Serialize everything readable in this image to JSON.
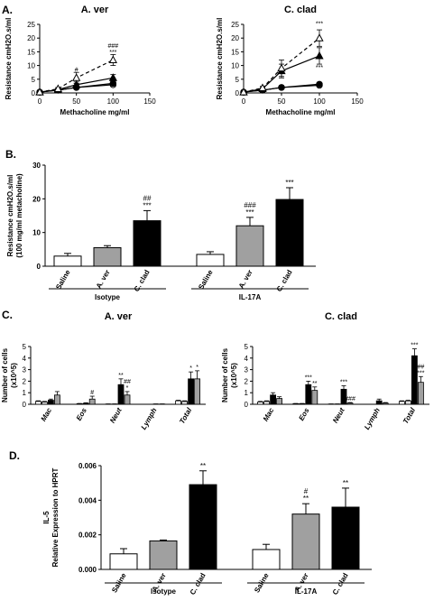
{
  "panels": {
    "A": "A.",
    "B": "B.",
    "C": "C.",
    "D": "D."
  },
  "chart_data": [
    {
      "id": "A1",
      "type": "line",
      "title": "A. ver",
      "xlabel": "Methacholine mg/ml",
      "ylabel": "Resistance cmH2O.s/ml",
      "xlim": [
        0,
        150
      ],
      "ylim": [
        0,
        25
      ],
      "xticks": [
        0,
        50,
        100,
        150
      ],
      "yticks": [
        0,
        5,
        10,
        15,
        20,
        25
      ],
      "x": [
        0,
        25,
        50,
        100
      ],
      "series": [
        {
          "values": [
            0.3,
            1.0,
            2.0,
            3.0
          ],
          "err": [
            0.2,
            0.3,
            0.5,
            0.6
          ],
          "marker": "open-circle",
          "dash": false
        },
        {
          "values": [
            0.3,
            1.0,
            2.0,
            3.5
          ],
          "err": [
            0.2,
            0.3,
            0.6,
            0.6
          ],
          "marker": "filled-circle",
          "dash": false
        },
        {
          "values": [
            0.3,
            1.2,
            3.0,
            5.5
          ],
          "err": [
            0.2,
            0.4,
            1.0,
            1.2
          ],
          "marker": "filled-triangle",
          "dash": false
        },
        {
          "values": [
            0.3,
            1.5,
            5.5,
            12.0
          ],
          "err": [
            0.2,
            0.5,
            2.0,
            2.0
          ],
          "marker": "open-triangle",
          "dash": true
        }
      ],
      "annotations": [
        {
          "x": 50,
          "y": 7.8,
          "text": "#"
        },
        {
          "x": 100,
          "y": 16.5,
          "text": "###"
        },
        {
          "x": 100,
          "y": 14.2,
          "text": "***"
        }
      ]
    },
    {
      "id": "A2",
      "type": "line",
      "title": "C. clad",
      "xlabel": "Methacholine mg/ml",
      "ylabel": "Resistance cmH2O.s/ml",
      "xlim": [
        0,
        150
      ],
      "ylim": [
        0,
        25
      ],
      "xticks": [
        0,
        50,
        100,
        150
      ],
      "yticks": [
        0,
        5,
        10,
        15,
        20,
        25
      ],
      "x": [
        0,
        25,
        50,
        100
      ],
      "series": [
        {
          "values": [
            0.3,
            1.0,
            2.0,
            2.8
          ],
          "err": [
            0.2,
            0.3,
            0.5,
            0.5
          ],
          "marker": "open-circle",
          "dash": false
        },
        {
          "values": [
            0.3,
            1.0,
            2.0,
            3.2
          ],
          "err": [
            0.2,
            0.3,
            0.5,
            0.6
          ],
          "marker": "filled-circle",
          "dash": false
        },
        {
          "values": [
            0.3,
            1.5,
            8.0,
            13.5
          ],
          "err": [
            0.2,
            0.5,
            2.5,
            3.0
          ],
          "marker": "filled-triangle",
          "dash": false
        },
        {
          "values": [
            0.3,
            1.8,
            9.0,
            20.0
          ],
          "err": [
            0.2,
            0.6,
            3.0,
            3.0
          ],
          "marker": "open-triangle",
          "dash": true
        }
      ],
      "annotations": [
        {
          "x": 100,
          "y": 24.5,
          "text": "***"
        },
        {
          "x": 100,
          "y": 8.5,
          "text": "***"
        }
      ]
    },
    {
      "id": "B",
      "type": "bar",
      "ylabel": "Resistance cmH2O.s/ml",
      "ylabel2": "(100 mg/ml metacholine)",
      "ylim": [
        0,
        30
      ],
      "yticks": [
        0,
        10,
        20,
        30
      ],
      "categories": [
        "Saline",
        "A. ver",
        "C. clad",
        "Saline",
        "A. ver",
        "C. clad"
      ],
      "values": [
        3.0,
        5.5,
        13.5,
        3.5,
        12.0,
        19.8
      ],
      "err": [
        0.8,
        0.6,
        3.0,
        0.8,
        2.5,
        3.5
      ],
      "fills": [
        "#ffffff",
        "#a0a0a0",
        "#000000",
        "#ffffff",
        "#a0a0a0",
        "#000000"
      ],
      "annotations": [
        {
          "bar": 2,
          "text": "##",
          "line": 2
        },
        {
          "bar": 2,
          "text": "***",
          "line": 1
        },
        {
          "bar": 4,
          "text": "###",
          "line": 2
        },
        {
          "bar": 4,
          "text": "***",
          "line": 1
        },
        {
          "bar": 5,
          "text": "***",
          "line": 1
        }
      ],
      "groups": [
        {
          "label": "Isotype",
          "from": 0,
          "to": 2
        },
        {
          "label": "IL-17A",
          "from": 3,
          "to": 5
        }
      ]
    },
    {
      "id": "C1",
      "type": "bar",
      "title": "A. ver",
      "ylabel": "Number of cells",
      "ylabel2": "(x10^5)",
      "ylim": [
        0,
        5
      ],
      "yticks": [
        0,
        1,
        2,
        3,
        4,
        5
      ],
      "categories": [
        "Mac",
        "Eos",
        "Neut",
        "Lymph",
        "Total"
      ],
      "series_fills": [
        "#ffffff",
        "#e0e0e0",
        "#000000",
        "#a0a0a0"
      ],
      "values": [
        [
          0.25,
          0.2,
          0.35,
          0.8
        ],
        [
          0.0,
          0.05,
          0.08,
          0.45
        ],
        [
          0.02,
          0.02,
          1.7,
          0.8
        ],
        [
          0.0,
          0.0,
          0.02,
          0.02
        ],
        [
          0.3,
          0.25,
          2.2,
          2.2
        ]
      ],
      "err": [
        [
          0.05,
          0.05,
          0.1,
          0.3
        ],
        [
          0.0,
          0.02,
          0.05,
          0.25
        ],
        [
          0.01,
          0.01,
          0.5,
          0.3
        ],
        [
          0.0,
          0.0,
          0.01,
          0.01
        ],
        [
          0.05,
          0.05,
          0.6,
          0.7
        ]
      ],
      "annotations": [
        {
          "cat": 1,
          "bar": 3,
          "text": "#",
          "line": 1
        },
        {
          "cat": 2,
          "bar": 2,
          "text": "**",
          "line": 1
        },
        {
          "cat": 2,
          "bar": 3,
          "text": "##",
          "line": 2
        },
        {
          "cat": 2,
          "bar": 3,
          "text": "*",
          "line": 1
        },
        {
          "cat": 4,
          "bar": 2,
          "text": "*",
          "line": 1
        },
        {
          "cat": 4,
          "bar": 3,
          "text": "*",
          "line": 1
        }
      ]
    },
    {
      "id": "C2",
      "type": "bar",
      "title": "C. clad",
      "ylabel": "Number of cells",
      "ylabel2": "(x10^5)",
      "ylim": [
        0,
        5
      ],
      "yticks": [
        0,
        1,
        2,
        3,
        4,
        5
      ],
      "categories": [
        "Mac",
        "Eos",
        "Neut",
        "Lymph",
        "Total"
      ],
      "series_fills": [
        "#ffffff",
        "#e0e0e0",
        "#000000",
        "#a0a0a0"
      ],
      "values": [
        [
          0.2,
          0.25,
          0.8,
          0.5
        ],
        [
          0.05,
          0.05,
          1.7,
          1.2
        ],
        [
          0.02,
          0.02,
          1.3,
          0.1
        ],
        [
          0.0,
          0.0,
          0.3,
          0.1
        ],
        [
          0.25,
          0.3,
          4.2,
          1.9
        ]
      ],
      "err": [
        [
          0.05,
          0.05,
          0.2,
          0.15
        ],
        [
          0.02,
          0.02,
          0.3,
          0.3
        ],
        [
          0.01,
          0.01,
          0.3,
          0.05
        ],
        [
          0.0,
          0.0,
          0.15,
          0.05
        ],
        [
          0.05,
          0.05,
          0.6,
          0.5
        ]
      ],
      "annotations": [
        {
          "cat": 1,
          "bar": 2,
          "text": "***",
          "line": 1
        },
        {
          "cat": 1,
          "bar": 3,
          "text": "**",
          "line": 1
        },
        {
          "cat": 2,
          "bar": 2,
          "text": "***",
          "line": 1
        },
        {
          "cat": 2,
          "bar": 3,
          "text": "###",
          "line": 1
        },
        {
          "cat": 4,
          "bar": 2,
          "text": "***",
          "line": 1
        },
        {
          "cat": 4,
          "bar": 3,
          "text": "##",
          "line": 2
        },
        {
          "cat": 4,
          "bar": 3,
          "text": "***",
          "line": 1
        }
      ]
    },
    {
      "id": "D",
      "type": "bar",
      "ylabel": "IL-5",
      "ylabel2": "Relative Expression to HPRT",
      "ylim": [
        0,
        0.006
      ],
      "yticks": [
        0,
        0.002,
        0.004,
        0.006
      ],
      "yticklabels": [
        "0.000",
        "0.002",
        "0.004",
        "0.006"
      ],
      "categories": [
        "Saline",
        "A. ver",
        "C. clad",
        "Saline",
        "A. ver",
        "C. clad"
      ],
      "values": [
        0.0009,
        0.00165,
        0.0049,
        0.00115,
        0.0032,
        0.0036
      ],
      "err": [
        0.0003,
        5e-05,
        0.0008,
        0.0003,
        0.0006,
        0.0011
      ],
      "fills": [
        "#ffffff",
        "#a0a0a0",
        "#000000",
        "#ffffff",
        "#a0a0a0",
        "#000000"
      ],
      "annotations": [
        {
          "bar": 2,
          "text": "**",
          "line": 1
        },
        {
          "bar": 4,
          "text": "#",
          "line": 2
        },
        {
          "bar": 4,
          "text": "**",
          "line": 1
        },
        {
          "bar": 5,
          "text": "**",
          "line": 1
        }
      ],
      "groups": [
        {
          "label": "Isotype",
          "from": 0,
          "to": 2
        },
        {
          "label": "IL-17A",
          "from": 3,
          "to": 5
        }
      ]
    }
  ]
}
